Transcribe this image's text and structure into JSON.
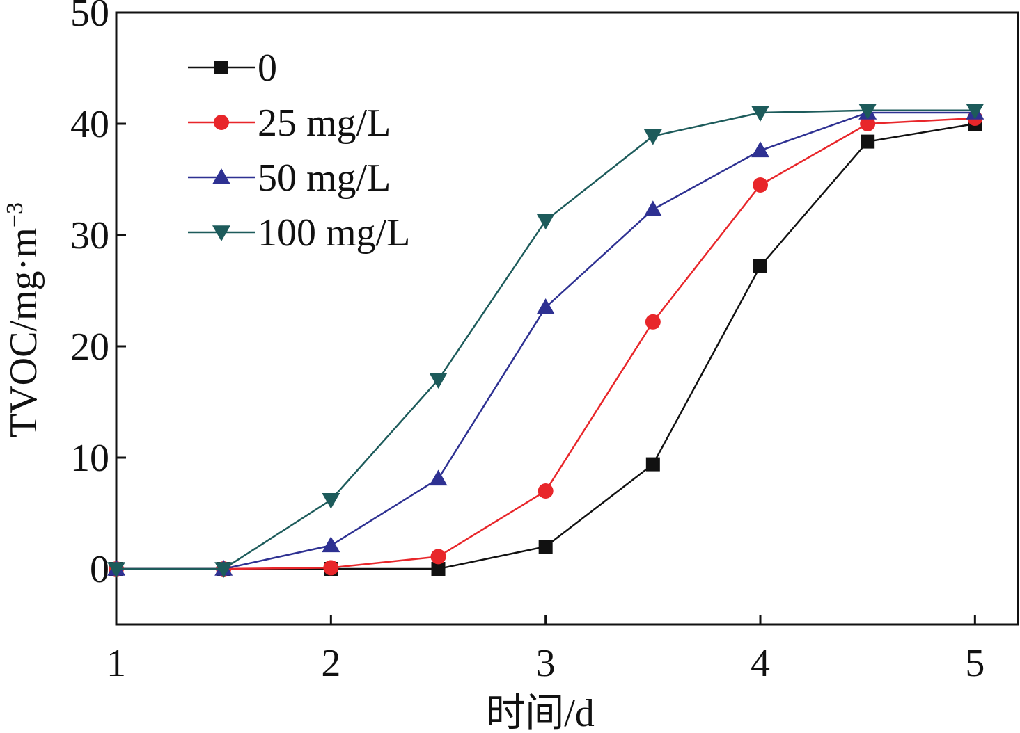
{
  "chart_data": {
    "type": "line",
    "xlabel": "时间/d",
    "ylabel": "TVOC/mg·m",
    "ylabel_sup": "−3",
    "xlim": [
      1,
      5.2
    ],
    "ylim": [
      -5,
      50
    ],
    "xticks": [
      1,
      2,
      3,
      4,
      5
    ],
    "xtick_labels": [
      "1",
      "2",
      "3",
      "4",
      "5"
    ],
    "yticks": [
      0,
      10,
      20,
      30,
      40,
      50
    ],
    "ytick_labels": [
      "0",
      "10",
      "20",
      "30",
      "40",
      "50"
    ],
    "grid": false,
    "legend_position": "top-left",
    "x": [
      1,
      1.5,
      2,
      2.5,
      3,
      3.5,
      4,
      4.5,
      5
    ],
    "series": [
      {
        "name": "0",
        "color": "#111111",
        "marker": "square",
        "values": [
          0,
          0,
          0,
          0,
          2,
          9.4,
          27.2,
          38.4,
          40
        ]
      },
      {
        "name": "25 mg/L",
        "color": "#e8262a",
        "marker": "circle",
        "values": [
          0,
          0,
          0.1,
          1.1,
          7,
          22.2,
          34.5,
          40,
          40.5
        ]
      },
      {
        "name": "50 mg/L",
        "color": "#2e3192",
        "marker": "triangle-up",
        "values": [
          0,
          0,
          2.1,
          8.1,
          23.5,
          32.3,
          37.6,
          41,
          41
        ]
      },
      {
        "name": "100 mg/L",
        "color": "#1d5b5b",
        "marker": "triangle-down",
        "values": [
          0,
          0,
          6.2,
          17,
          31.3,
          38.9,
          41,
          41.2,
          41.2
        ]
      }
    ]
  }
}
